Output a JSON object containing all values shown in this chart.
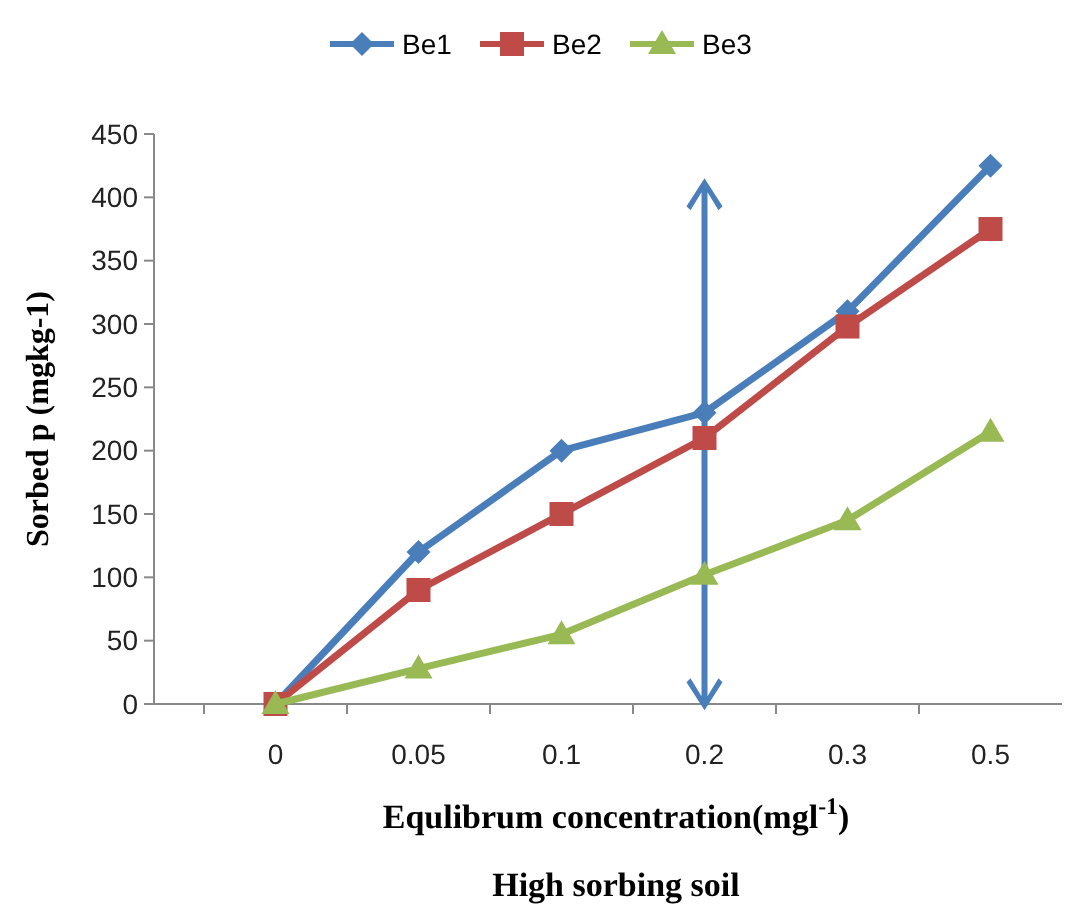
{
  "chart_data": {
    "type": "line",
    "xlabel": "Equlibrum concentration(mgl$^{-1}$)",
    "ylabel": "Sorbed p (mgkg-1)",
    "annotations": [
      "High sorbing soil"
    ],
    "categories": [
      "0",
      "0.05",
      "0.1",
      "0.2",
      "0.3",
      "0.5"
    ],
    "series": [
      {
        "name": "Be1",
        "color": "#4a7ebb",
        "marker": "diamond",
        "values": [
          0,
          120,
          200,
          230,
          310,
          425
        ]
      },
      {
        "name": "Be2",
        "color": "#be4b48",
        "marker": "square",
        "values": [
          0,
          90,
          150,
          210,
          298,
          375
        ]
      },
      {
        "name": "Be3",
        "color": "#98b954",
        "marker": "triangle",
        "values": [
          0,
          28,
          55,
          102,
          145,
          215
        ]
      }
    ],
    "ylim": [
      0,
      450
    ],
    "yticks": [
      0,
      50,
      100,
      150,
      200,
      250,
      300,
      350,
      400,
      450
    ],
    "grid": false,
    "legend": "top"
  }
}
